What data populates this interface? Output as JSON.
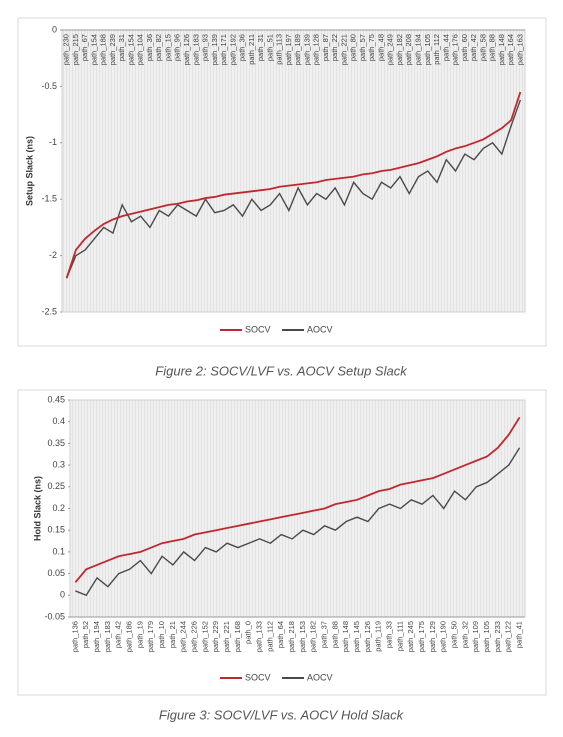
{
  "chart_data": [
    {
      "type": "line",
      "ylabel": "Setup Slack (ns)",
      "caption": "Figure 2: SOCV/LVF vs. AOCV Setup Slack",
      "categories": [
        "path_230",
        "path_215",
        "path_67",
        "path_154",
        "path_188",
        "path_239",
        "path_31",
        "path_154",
        "path_104",
        "path_36",
        "path_82",
        "path_15",
        "path_96",
        "path_126",
        "path_183",
        "path_93",
        "path_139",
        "path_171",
        "path_192",
        "path_36",
        "path_211",
        "path_31",
        "path_51",
        "path_113",
        "path_197",
        "path_189",
        "path_139",
        "path_128",
        "path_87",
        "path_22",
        "path_221",
        "path_80",
        "path_57",
        "path_75",
        "path_48",
        "path_249",
        "path_182",
        "path_208",
        "path_194",
        "path_105",
        "path_112",
        "path_44",
        "path_176",
        "path_60",
        "path_42",
        "path_58",
        "path_88",
        "path_148",
        "path_164",
        "path_163"
      ],
      "series": [
        {
          "name": "SOCV",
          "color": "#c0282d",
          "values": [
            -2.2,
            -1.95,
            -1.85,
            -1.78,
            -1.72,
            -1.68,
            -1.65,
            -1.63,
            -1.61,
            -1.59,
            -1.57,
            -1.55,
            -1.54,
            -1.52,
            -1.51,
            -1.49,
            -1.48,
            -1.46,
            -1.45,
            -1.44,
            -1.43,
            -1.42,
            -1.41,
            -1.39,
            -1.38,
            -1.37,
            -1.36,
            -1.35,
            -1.33,
            -1.32,
            -1.31,
            -1.3,
            -1.28,
            -1.27,
            -1.25,
            -1.24,
            -1.22,
            -1.2,
            -1.18,
            -1.15,
            -1.12,
            -1.08,
            -1.05,
            -1.03,
            -1.0,
            -0.97,
            -0.92,
            -0.87,
            -0.8,
            -0.55
          ]
        },
        {
          "name": "AOCV",
          "color": "#4a4a4a",
          "values": [
            -2.2,
            -2.0,
            -1.95,
            -1.85,
            -1.75,
            -1.8,
            -1.55,
            -1.7,
            -1.65,
            -1.75,
            -1.6,
            -1.65,
            -1.55,
            -1.6,
            -1.65,
            -1.5,
            -1.62,
            -1.6,
            -1.55,
            -1.65,
            -1.5,
            -1.6,
            -1.55,
            -1.45,
            -1.6,
            -1.4,
            -1.55,
            -1.45,
            -1.5,
            -1.4,
            -1.55,
            -1.35,
            -1.45,
            -1.5,
            -1.35,
            -1.4,
            -1.3,
            -1.45,
            -1.3,
            -1.25,
            -1.35,
            -1.15,
            -1.25,
            -1.1,
            -1.15,
            -1.05,
            -1.0,
            -1.1,
            -0.85,
            -0.62
          ]
        }
      ],
      "ylim": [
        -2.5,
        0
      ],
      "yticks": [
        0,
        -0.5,
        -1,
        -1.5,
        -2,
        -2.5
      ],
      "legend": "bottom"
    },
    {
      "type": "line",
      "ylabel": "Hold Slack (ns)",
      "caption": "Figure 3: SOCV/LVF vs. AOCV Hold Slack",
      "categories": [
        "path_136",
        "path_52",
        "path_194",
        "path_183",
        "path_42",
        "path_186",
        "path_19",
        "path_179",
        "path_10",
        "path_21",
        "path_244",
        "path_226",
        "path_152",
        "path_229",
        "path_221",
        "path_168",
        "path_0",
        "path_133",
        "path_112",
        "path_64",
        "path_218",
        "path_153",
        "path_182",
        "path_37",
        "path_88",
        "path_148",
        "path_145",
        "path_126",
        "path_119",
        "path_33",
        "path_111",
        "path_245",
        "path_175",
        "path_129",
        "path_190",
        "path_50",
        "path_32",
        "path_109",
        "path_105",
        "path_233",
        "path_122",
        "path_41"
      ],
      "series": [
        {
          "name": "SOCV",
          "color": "#c0282d",
          "values": [
            0.03,
            0.06,
            0.07,
            0.08,
            0.09,
            0.095,
            0.1,
            0.11,
            0.12,
            0.125,
            0.13,
            0.14,
            0.145,
            0.15,
            0.155,
            0.16,
            0.165,
            0.17,
            0.175,
            0.18,
            0.185,
            0.19,
            0.195,
            0.2,
            0.21,
            0.215,
            0.22,
            0.23,
            0.24,
            0.245,
            0.255,
            0.26,
            0.265,
            0.27,
            0.28,
            0.29,
            0.3,
            0.31,
            0.32,
            0.34,
            0.37,
            0.41
          ]
        },
        {
          "name": "AOCV",
          "color": "#4a4a4a",
          "values": [
            0.01,
            0.0,
            0.04,
            0.02,
            0.05,
            0.06,
            0.08,
            0.05,
            0.09,
            0.07,
            0.1,
            0.08,
            0.11,
            0.1,
            0.12,
            0.11,
            0.12,
            0.13,
            0.12,
            0.14,
            0.13,
            0.15,
            0.14,
            0.16,
            0.15,
            0.17,
            0.18,
            0.17,
            0.2,
            0.21,
            0.2,
            0.22,
            0.21,
            0.23,
            0.2,
            0.24,
            0.22,
            0.25,
            0.26,
            0.28,
            0.3,
            0.34
          ]
        }
      ],
      "ylim": [
        -0.05,
        0.45
      ],
      "yticks": [
        0.45,
        0.4,
        0.35,
        0.3,
        0.25,
        0.2,
        0.15,
        0.1,
        0.05,
        0,
        -0.05
      ],
      "legend": "bottom"
    }
  ]
}
